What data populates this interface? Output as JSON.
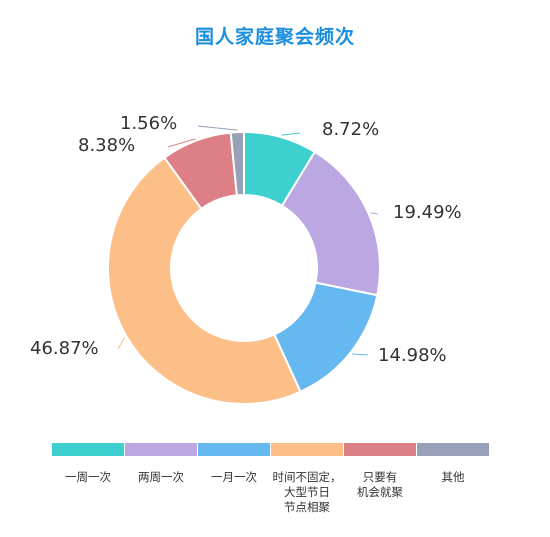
{
  "chart_data": {
    "type": "pie",
    "title": "国人家庭聚会频次",
    "categories": [
      "一周一次",
      "两周一次",
      "一月一次",
      "时间不固定，\n大型节日\n节点相聚",
      "只要有\n机会就聚",
      "其他"
    ],
    "values": [
      8.72,
      19.49,
      14.98,
      46.87,
      8.38,
      1.56
    ],
    "value_labels": [
      "8.72%",
      "19.49%",
      "14.98%",
      "46.87%",
      "8.38%",
      "1.56%"
    ],
    "colors": [
      "#3ecfcf",
      "#bba8e2",
      "#66b8f0",
      "#fcbf88",
      "#dd7f87",
      "#98a1b8"
    ],
    "donut": true,
    "legend_position": "bottom"
  }
}
